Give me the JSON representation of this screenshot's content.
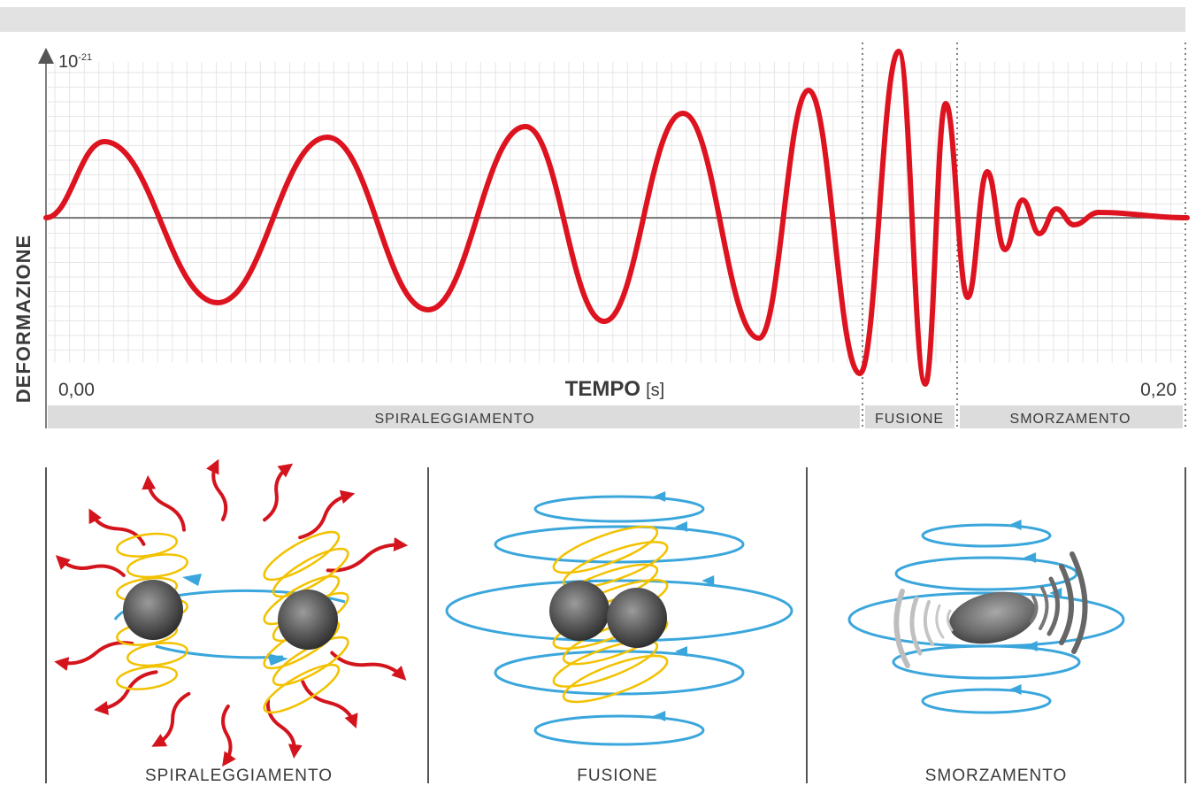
{
  "chart": {
    "y_exponent_base": "10",
    "y_exponent_power": "-21",
    "y_label": "DEFORMAZIONE",
    "x_label": "TEMPO",
    "x_unit": "[s]",
    "x_start": "0,00",
    "x_end": "0,20"
  },
  "phases": {
    "inspiral": "SPIRALEGGIAMENTO",
    "merger": "FUSIONE",
    "ringdown": "SMORZAMENTO"
  },
  "panels": [
    {
      "label": "SPIRALEGGIAMENTO"
    },
    {
      "label": "FUSIONE"
    },
    {
      "label": "SMORZAMENTO"
    }
  ],
  "colors": {
    "wave": "#dd1320",
    "grid": "#e3e3e3",
    "band": "#dcdcdc",
    "axis": "#555555",
    "field_lines": "#f2c200",
    "orbit": "#3aa6dc",
    "emission": "#d4141c"
  }
}
